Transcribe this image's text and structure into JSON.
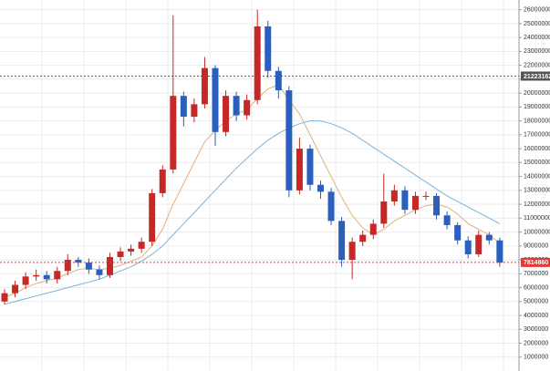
{
  "chart_data": {
    "type": "candlestick",
    "up_color": "#c62828",
    "down_color": "#2b5fbd",
    "open": [
      5000000,
      5600000,
      6200000,
      6800000,
      6900000,
      6600000,
      7200000,
      8000000,
      7800000,
      7300000,
      6900000,
      8200000,
      8600000,
      8800000,
      9300000,
      12800000,
      14500000,
      19800000,
      18300000,
      19200000,
      21800000,
      17200000,
      19800000,
      18400000,
      19500000,
      24800000,
      21600000,
      20200000,
      13000000,
      16000000,
      13400000,
      12900000,
      10800000,
      8000000,
      9300000,
      9800000,
      10600000,
      12200000,
      13000000,
      11600000,
      12600000,
      12600000,
      11200000,
      10500000,
      9400000,
      8400000,
      9800000,
      9400000
    ],
    "high": [
      5900000,
      6500000,
      7100000,
      7300000,
      7200000,
      7500000,
      8400000,
      8200000,
      8100000,
      7600000,
      8500000,
      8900000,
      9100000,
      9600000,
      13100000,
      14800000,
      25600000,
      20100000,
      19600000,
      22600000,
      22000000,
      20200000,
      20100000,
      19900000,
      26000000,
      25200000,
      21900000,
      20500000,
      16800000,
      16300000,
      13700000,
      13200000,
      11100000,
      9600000,
      10100000,
      10900000,
      14200000,
      13400000,
      13300000,
      12900000,
      12900000,
      12800000,
      11500000,
      10700000,
      9700000,
      10100000,
      10000000,
      9600000
    ],
    "low": [
      4800000,
      5300000,
      5900000,
      6500000,
      6300000,
      6300000,
      6900000,
      7500000,
      7000000,
      6600000,
      6700000,
      7900000,
      8300000,
      8500000,
      9000000,
      12500000,
      14200000,
      17600000,
      17900000,
      18900000,
      16200000,
      16900000,
      18000000,
      18100000,
      19200000,
      21100000,
      19600000,
      12500000,
      12700000,
      13000000,
      12400000,
      10500000,
      7500000,
      6600000,
      9000000,
      9500000,
      10300000,
      11900000,
      11300000,
      11300000,
      12300000,
      10900000,
      10200000,
      9100000,
      8100000,
      8200000,
      9100000,
      7500000
    ],
    "close": [
      5600000,
      6200000,
      6800000,
      6900000,
      6600000,
      7200000,
      8000000,
      7800000,
      7300000,
      6900000,
      8200000,
      8600000,
      8800000,
      9300000,
      12800000,
      14500000,
      19800000,
      18300000,
      19200000,
      21800000,
      17200000,
      19800000,
      18400000,
      19500000,
      24800000,
      21600000,
      20200000,
      13000000,
      16000000,
      13400000,
      12900000,
      10800000,
      8000000,
      9300000,
      9800000,
      10600000,
      12200000,
      13000000,
      11600000,
      12600000,
      12600000,
      11200000,
      10500000,
      9400000,
      8400000,
      9800000,
      9400000,
      7800000
    ],
    "series": [
      {
        "color": "#e0b07a",
        "values": [
          5300000,
          5600000,
          6000000,
          6300000,
          6500000,
          6700000,
          7000000,
          7300000,
          7400000,
          7300000,
          7400000,
          7600000,
          7900000,
          8200000,
          9000000,
          10200000,
          12000000,
          13500000,
          15000000,
          16500000,
          17300000,
          18000000,
          18500000,
          18800000,
          19600000,
          20300000,
          20600000,
          19500000,
          18500000,
          17000000,
          15500000,
          14000000,
          12500000,
          11200000,
          10300000,
          9800000,
          10200000,
          10800000,
          11200000,
          11600000,
          11900000,
          12000000,
          11800000,
          11300000,
          10600000,
          10200000,
          9800000,
          9200000
        ]
      },
      {
        "color": "#7fb3d8",
        "values": [
          4800000,
          5000000,
          5200000,
          5400000,
          5600000,
          5800000,
          6000000,
          6200000,
          6400000,
          6600000,
          6900000,
          7200000,
          7500000,
          7900000,
          8400000,
          9000000,
          9800000,
          10600000,
          11400000,
          12200000,
          13000000,
          13800000,
          14600000,
          15300000,
          16000000,
          16600000,
          17100000,
          17500000,
          17800000,
          18000000,
          18000000,
          17800000,
          17500000,
          17100000,
          16600000,
          16100000,
          15600000,
          15100000,
          14600000,
          14100000,
          13600000,
          13100000,
          12600000,
          12200000,
          11800000,
          11400000,
          11000000,
          10600000
        ]
      }
    ],
    "price_lines": [
      {
        "value": 21223162,
        "color": "#555555"
      },
      {
        "value": 7814860,
        "color": "#e53935"
      }
    ],
    "ylim": [
      0,
      26700000
    ],
    "yticks": [
      1000000,
      2000000,
      3000000,
      4000000,
      5000000,
      6000000,
      7000000,
      8000000,
      9000000,
      10000000,
      11000000,
      12000000,
      13000000,
      14000000,
      15000000,
      16000000,
      17000000,
      18000000,
      19000000,
      20000000,
      21000000,
      22000000,
      23000000,
      24000000,
      25000000,
      26000000
    ],
    "grid": true
  }
}
